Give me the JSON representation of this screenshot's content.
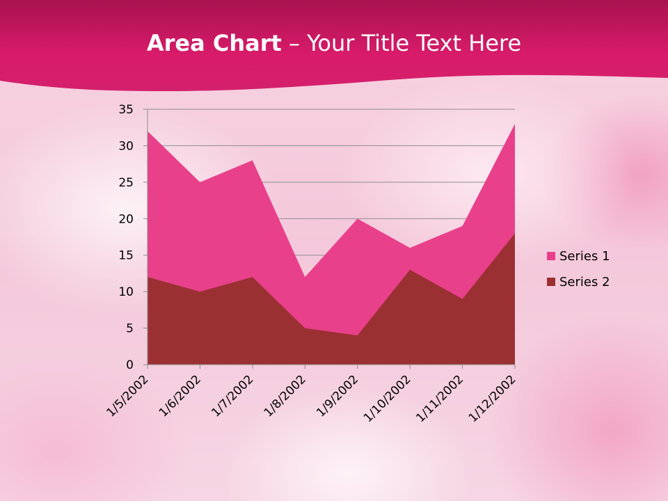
{
  "slide": {
    "title_bold": "Area Chart",
    "title_rest": " – Your Title Text Here"
  },
  "colors": {
    "header": "#d81b6a",
    "header_dark": "#a8124f",
    "series1": "#e8408a",
    "series2": "#9b3033",
    "gridline": "#8c8c8c"
  },
  "chart_data": {
    "type": "area",
    "categories": [
      "1/5/2002",
      "1/6/2002",
      "1/7/2002",
      "1/8/2002",
      "1/9/2002",
      "1/10/2002",
      "1/11/2002",
      "1/12/2002"
    ],
    "series": [
      {
        "name": "Series 1",
        "values": [
          32,
          25,
          28,
          12,
          20,
          16,
          19,
          33
        ]
      },
      {
        "name": "Series 2",
        "values": [
          12,
          10,
          12,
          5,
          4,
          13,
          9,
          18
        ]
      }
    ],
    "ylim": [
      0,
      35
    ],
    "yticks": [
      0,
      5,
      10,
      15,
      20,
      25,
      30,
      35
    ],
    "grid": true,
    "legend": "right",
    "xlabel": "",
    "ylabel": ""
  }
}
